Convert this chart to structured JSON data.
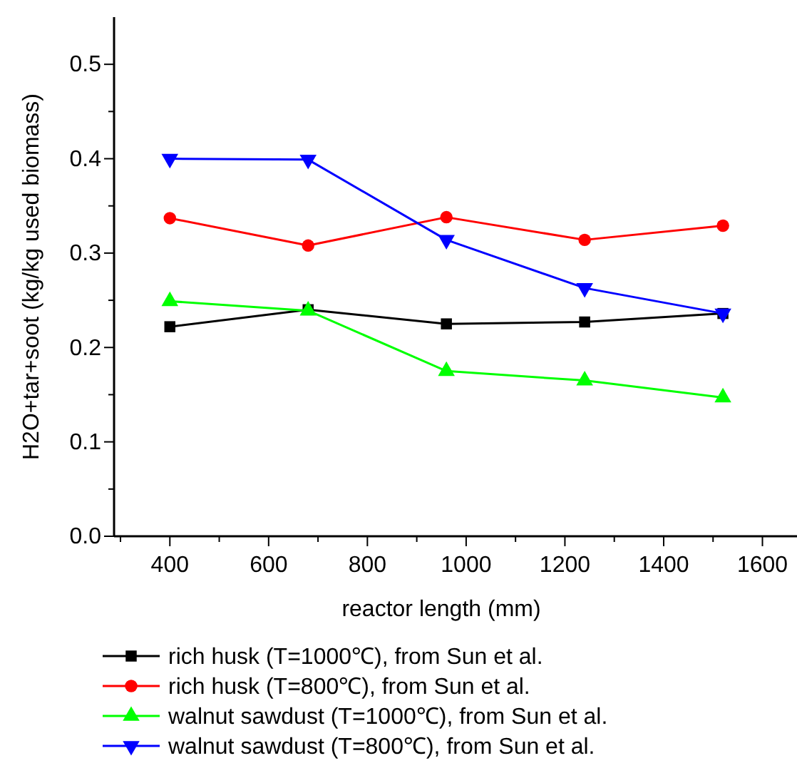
{
  "chart_data": {
    "type": "line",
    "xlabel": "reactor length (mm)",
    "ylabel": "H2O+tar+soot (kg/kg used biomass)",
    "xlim": [
      287,
      1670
    ],
    "xticks": [
      {
        "value": 300,
        "label": null
      },
      400,
      {
        "value": 500,
        "label": null
      },
      600,
      {
        "value": 700,
        "label": null
      },
      800,
      {
        "value": 900,
        "label": null
      },
      1000,
      {
        "value": 1100,
        "label": null
      },
      1200,
      {
        "value": 1300,
        "label": null
      },
      1400,
      {
        "value": 1500,
        "label": null
      },
      1600
    ],
    "ylim": [
      0,
      0.55
    ],
    "yticks": [
      {
        "value": 0,
        "label": "0.0"
      },
      {
        "value": 0.05,
        "label": null
      },
      0.1,
      {
        "value": 0.15,
        "label": null
      },
      0.2,
      {
        "value": 0.25,
        "label": null
      },
      0.3,
      {
        "value": 0.35,
        "label": null
      },
      0.4,
      {
        "value": 0.45,
        "label": null
      },
      0.5
    ],
    "grid": false,
    "legend": "bottom",
    "line_style": "solid",
    "series": [
      {
        "name": "rich husk (T=1000℃), from Sun et al.",
        "color": "#000000",
        "marker": "square",
        "x": [
          400,
          680,
          960,
          1240,
          1520
        ],
        "values": [
          0.222,
          0.24,
          0.225,
          0.227,
          0.236
        ]
      },
      {
        "name": "rich husk (T=800℃), from Sun et al.",
        "color": "#ff0000",
        "marker": "circle",
        "x": [
          400,
          680,
          960,
          1240,
          1520
        ],
        "values": [
          0.337,
          0.308,
          0.338,
          0.314,
          0.329
        ]
      },
      {
        "name": "walnut sawdust (T=1000℃), from Sun et al.",
        "color": "#00ff00",
        "marker": "triangle",
        "x": [
          400,
          680,
          960,
          1240,
          1520
        ],
        "values": [
          0.249,
          0.239,
          0.175,
          0.165,
          0.147
        ]
      },
      {
        "name": "walnut sawdust (T=800℃), from Sun et al.",
        "color": "#0000ff",
        "marker": "triangle-down",
        "x": [
          400,
          680,
          960,
          1240,
          1520
        ],
        "values": [
          0.4,
          0.399,
          0.314,
          0.263,
          0.236
        ]
      }
    ]
  }
}
